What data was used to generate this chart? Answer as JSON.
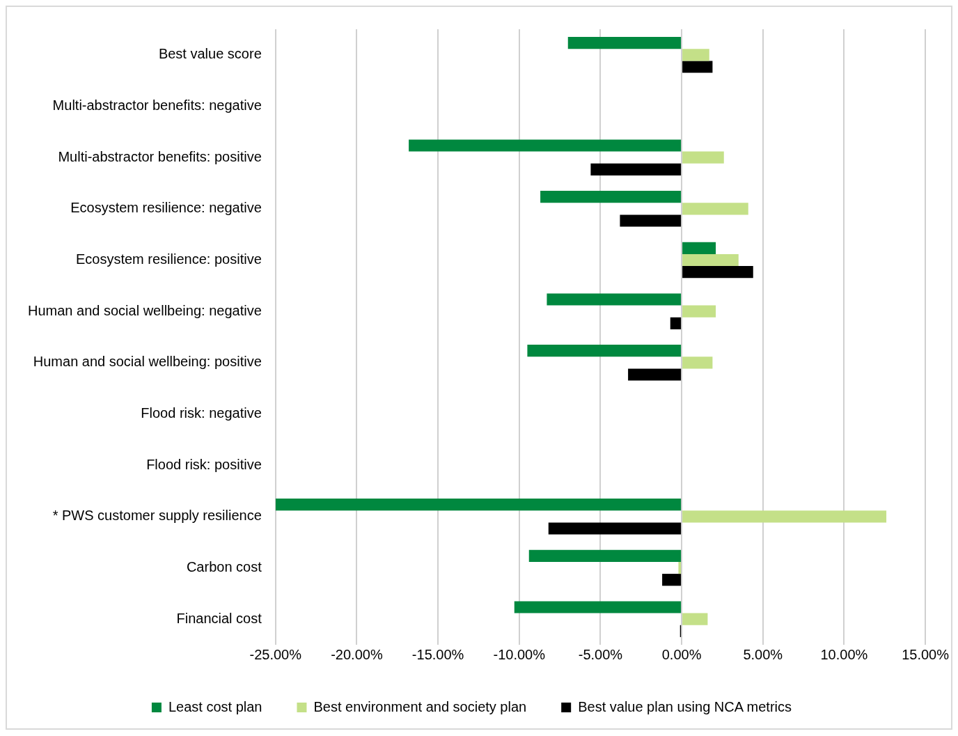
{
  "chart_data": {
    "type": "bar",
    "orientation": "horizontal",
    "categories": [
      "Best value score",
      "Multi-abstractor benefits: negative",
      "Multi-abstractor benefits: positive",
      "Ecosystem resilience: negative",
      "Ecosystem resilience: positive",
      "Human and social wellbeing: negative",
      "Human and social wellbeing: positive",
      "Flood risk: negative",
      "Flood risk: positive",
      "* PWS customer supply resilience",
      "Carbon cost",
      "Financial cost"
    ],
    "series": [
      {
        "name": "Least cost plan",
        "color": "#00883f",
        "values": [
          -7.0,
          0,
          -16.8,
          -8.7,
          2.1,
          -8.3,
          -9.5,
          0,
          0,
          -25.0,
          -9.4,
          -10.3
        ]
      },
      {
        "name": "Best environment and society plan",
        "color": "#c4e088",
        "values": [
          1.7,
          0,
          2.6,
          4.1,
          3.5,
          2.1,
          1.9,
          0,
          0,
          12.6,
          -0.2,
          1.6
        ]
      },
      {
        "name": "Best value plan using NCA metrics",
        "color": "#000000",
        "values": [
          1.9,
          0,
          -5.6,
          -3.8,
          4.4,
          -0.7,
          -3.3,
          0,
          0,
          -8.2,
          -1.2,
          -0.1
        ]
      }
    ],
    "xlim": [
      -25,
      15
    ],
    "xticks": [
      {
        "value": -25,
        "label": "-25.00%"
      },
      {
        "value": -20,
        "label": "-20.00%"
      },
      {
        "value": -15,
        "label": "-15.00%"
      },
      {
        "value": -10,
        "label": "-10.00%"
      },
      {
        "value": -5,
        "label": "-5.00%"
      },
      {
        "value": 0,
        "label": "0.00%"
      },
      {
        "value": 5,
        "label": "5.00%"
      },
      {
        "value": 10,
        "label": "10.00%"
      },
      {
        "value": 15,
        "label": "15.00%"
      }
    ],
    "grid": "x",
    "legend": "bottom"
  }
}
